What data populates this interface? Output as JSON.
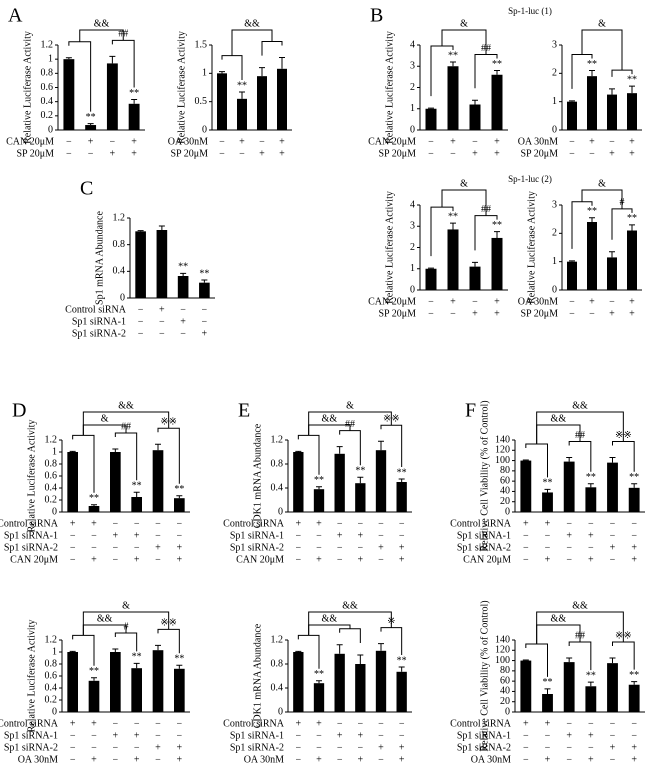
{
  "chart_data": [
    {
      "type": "bar",
      "panel": "A",
      "ylabel": "Relative Luciferase Activity",
      "ylim": [
        0,
        1.2
      ],
      "yticks": [
        0,
        0.2,
        0.4,
        0.6,
        0.8,
        1,
        1.2
      ],
      "values": [
        1.0,
        0.07,
        0.94,
        0.37
      ],
      "errors": [
        0.02,
        0.02,
        0.1,
        0.06
      ],
      "significance": [
        null,
        "**",
        null,
        "**"
      ],
      "annotations": [
        "&&",
        "##"
      ],
      "conditions": [
        {
          "label": "CAN 20μM",
          "signs": [
            "−",
            "+",
            "−",
            "+"
          ]
        },
        {
          "label": "SP 20μM",
          "signs": [
            "−",
            "−",
            "+",
            "+"
          ]
        }
      ]
    },
    {
      "type": "bar",
      "ylabel": "Relative Luciferase Activity",
      "ylim": [
        0,
        1.5
      ],
      "yticks": [
        0,
        0.5,
        1,
        1.5
      ],
      "values": [
        1.0,
        0.55,
        0.95,
        1.08
      ],
      "errors": [
        0.03,
        0.12,
        0.15,
        0.2
      ],
      "significance": [
        null,
        "**",
        null,
        null
      ],
      "annotations": [
        "&&"
      ],
      "conditions": [
        {
          "label": "OA 30nM",
          "signs": [
            "−",
            "+",
            "−",
            "+"
          ]
        },
        {
          "label": "SP 20μM",
          "signs": [
            "−",
            "−",
            "+",
            "+"
          ]
        }
      ]
    },
    {
      "type": "bar",
      "panel": "B",
      "subtitle": "Sp-1-luc (1)",
      "ylabel": "Relative Luciferase Activity",
      "ylim": [
        0,
        4
      ],
      "yticks": [
        0,
        1,
        2,
        3,
        4
      ],
      "values": [
        1.0,
        3.0,
        1.2,
        2.6
      ],
      "errors": [
        0.03,
        0.2,
        0.2,
        0.2
      ],
      "significance": [
        null,
        "**",
        null,
        "**"
      ],
      "annotations": [
        "&",
        "##"
      ],
      "conditions": [
        {
          "label": "CAN 20μM",
          "signs": [
            "−",
            "+",
            "−",
            "+"
          ]
        },
        {
          "label": "SP 20μM",
          "signs": [
            "−",
            "−",
            "+",
            "+"
          ]
        }
      ]
    },
    {
      "type": "bar",
      "ylim": [
        0,
        3
      ],
      "yticks": [
        0,
        1,
        2,
        3
      ],
      "values": [
        1.0,
        1.9,
        1.25,
        1.3
      ],
      "errors": [
        0.03,
        0.2,
        0.2,
        0.25
      ],
      "significance": [
        null,
        "**",
        null,
        "**"
      ],
      "annotations": [
        "&"
      ],
      "conditions": [
        {
          "label": "OA 30nM",
          "signs": [
            "−",
            "+",
            "−",
            "+"
          ]
        },
        {
          "label": "SP 20μM",
          "signs": [
            "−",
            "−",
            "+",
            "+"
          ]
        }
      ]
    },
    {
      "type": "bar",
      "subtitle": "Sp-1-luc (2)",
      "ylabel": "Relative Luciferase Activity",
      "ylim": [
        0,
        4
      ],
      "yticks": [
        0,
        1,
        2,
        3,
        4
      ],
      "values": [
        1.0,
        2.85,
        1.1,
        2.45
      ],
      "errors": [
        0.03,
        0.3,
        0.2,
        0.3
      ],
      "significance": [
        null,
        "**",
        null,
        "**"
      ],
      "annotations": [
        "&",
        "##"
      ],
      "conditions": [
        {
          "label": "CAN 20μM",
          "signs": [
            "−",
            "+",
            "−",
            "+"
          ]
        },
        {
          "label": "SP 20μM",
          "signs": [
            "−",
            "−",
            "+",
            "+"
          ]
        }
      ]
    },
    {
      "type": "bar",
      "ylabel": "Relative Luciferase Activity",
      "ylim": [
        0,
        3
      ],
      "yticks": [
        0,
        1,
        2,
        3
      ],
      "values": [
        1.0,
        2.4,
        1.15,
        2.1
      ],
      "errors": [
        0.03,
        0.15,
        0.2,
        0.2
      ],
      "significance": [
        null,
        "**",
        null,
        "**"
      ],
      "annotations": [
        "&",
        "#"
      ],
      "conditions": [
        {
          "label": "OA 30nM",
          "signs": [
            "−",
            "+",
            "−",
            "+"
          ]
        },
        {
          "label": "SP 20μM",
          "signs": [
            "−",
            "−",
            "+",
            "+"
          ]
        }
      ]
    },
    {
      "type": "bar",
      "panel": "C",
      "ylabel": "Sp1 mRNA Abundance",
      "ylim": [
        0,
        1.2
      ],
      "yticks": [
        0,
        0.4,
        0.8,
        1.2
      ],
      "values": [
        1.0,
        1.02,
        0.33,
        0.23
      ],
      "errors": [
        0.01,
        0.06,
        0.04,
        0.04
      ],
      "significance": [
        null,
        null,
        "**",
        "**"
      ],
      "annotations": [],
      "conditions": [
        {
          "label": "Control siRNA",
          "signs": [
            "−",
            "+",
            "−",
            "−"
          ]
        },
        {
          "label": "Sp1 siRNA-1",
          "signs": [
            "−",
            "−",
            "+",
            "−"
          ]
        },
        {
          "label": "Sp1 siRNA-2",
          "signs": [
            "−",
            "−",
            "−",
            "+"
          ]
        }
      ]
    },
    {
      "type": "bar",
      "panel": "D",
      "ylabel": "Relative Luciferase Activity",
      "ylim": [
        0,
        1.2
      ],
      "yticks": [
        0,
        0.2,
        0.4,
        0.6,
        0.8,
        1,
        1.2
      ],
      "values": [
        1.0,
        0.1,
        1.0,
        0.25,
        1.03,
        0.23
      ],
      "errors": [
        0.01,
        0.02,
        0.05,
        0.08,
        0.1,
        0.04
      ],
      "significance": [
        null,
        "**",
        null,
        "**",
        null,
        "**"
      ],
      "annotations": [
        "&&",
        "&",
        "##",
        "※※"
      ],
      "conditions": [
        {
          "label": "Control siRNA",
          "signs": [
            "+",
            "+",
            "−",
            "−",
            "−",
            "−"
          ]
        },
        {
          "label": "Sp1 siRNA-1",
          "signs": [
            "−",
            "−",
            "+",
            "+",
            "−",
            "−"
          ]
        },
        {
          "label": "Sp1 siRNA-2",
          "signs": [
            "−",
            "−",
            "−",
            "−",
            "+",
            "+"
          ]
        },
        {
          "label": "CAN 20μM",
          "signs": [
            "−",
            "+",
            "−",
            "+",
            "−",
            "+"
          ]
        }
      ]
    },
    {
      "type": "bar",
      "ylabel": "Relative Luciferase Activity",
      "ylim": [
        0,
        1.2
      ],
      "yticks": [
        0,
        0.2,
        0.4,
        0.6,
        0.8,
        1,
        1.2
      ],
      "values": [
        1.0,
        0.52,
        1.0,
        0.73,
        1.03,
        0.72
      ],
      "errors": [
        0.01,
        0.05,
        0.05,
        0.08,
        0.08,
        0.06
      ],
      "significance": [
        null,
        "**",
        null,
        "**",
        null,
        "**"
      ],
      "annotations": [
        "&",
        "&&",
        "#",
        "※※"
      ],
      "conditions": [
        {
          "label": "Control siRNA",
          "signs": [
            "+",
            "+",
            "−",
            "−",
            "−",
            "−"
          ]
        },
        {
          "label": "Sp1 siRNA-1",
          "signs": [
            "−",
            "−",
            "+",
            "+",
            "−",
            "−"
          ]
        },
        {
          "label": "Sp1 siRNA-2",
          "signs": [
            "−",
            "−",
            "−",
            "−",
            "+",
            "+"
          ]
        },
        {
          "label": "OA 30nM",
          "signs": [
            "−",
            "+",
            "−",
            "+",
            "−",
            "+"
          ]
        }
      ]
    },
    {
      "type": "bar",
      "panel": "E",
      "ylabel": "CDK1 mRNA Abundance",
      "ylim": [
        0,
        1.2
      ],
      "yticks": [
        0,
        0.4,
        0.8,
        1.2
      ],
      "values": [
        1.0,
        0.38,
        0.97,
        0.48,
        1.03,
        0.5
      ],
      "errors": [
        0.01,
        0.04,
        0.12,
        0.1,
        0.15,
        0.05
      ],
      "significance": [
        null,
        "**",
        null,
        "**",
        null,
        "**"
      ],
      "annotations": [
        "&",
        "&&",
        "##",
        "※※"
      ],
      "conditions": [
        {
          "label": "Control siRNA",
          "signs": [
            "+",
            "+",
            "−",
            "−",
            "−",
            "−"
          ]
        },
        {
          "label": "Sp1 siRNA-1",
          "signs": [
            "−",
            "−",
            "+",
            "+",
            "−",
            "−"
          ]
        },
        {
          "label": "Sp1 siRNA-2",
          "signs": [
            "−",
            "−",
            "−",
            "−",
            "+",
            "+"
          ]
        },
        {
          "label": "CAN 20μM",
          "signs": [
            "−",
            "+",
            "−",
            "+",
            "−",
            "+"
          ]
        }
      ]
    },
    {
      "type": "bar",
      "ylabel": "CDK1 mRNA Abundance",
      "ylim": [
        0,
        1.2
      ],
      "yticks": [
        0,
        0.4,
        0.8,
        1.2
      ],
      "values": [
        1.0,
        0.48,
        0.97,
        0.8,
        1.02,
        0.67
      ],
      "errors": [
        0.01,
        0.04,
        0.15,
        0.15,
        0.12,
        0.08
      ],
      "significance": [
        null,
        "**",
        null,
        null,
        null,
        "**"
      ],
      "annotations": [
        "&&",
        "&&",
        "※"
      ],
      "conditions": [
        {
          "label": "Control siRNA",
          "signs": [
            "+",
            "+",
            "−",
            "−",
            "−",
            "−"
          ]
        },
        {
          "label": "Sp1 siRNA-1",
          "signs": [
            "−",
            "−",
            "+",
            "+",
            "−",
            "−"
          ]
        },
        {
          "label": "Sp1 siRNA-2",
          "signs": [
            "−",
            "−",
            "−",
            "−",
            "+",
            "+"
          ]
        },
        {
          "label": "OA 30nM",
          "signs": [
            "−",
            "+",
            "−",
            "+",
            "−",
            "+"
          ]
        }
      ]
    },
    {
      "type": "bar",
      "panel": "F",
      "ylabel": "Relative Cell Viability (% of Control)",
      "ylim": [
        0,
        140
      ],
      "yticks": [
        0,
        20,
        40,
        60,
        80,
        100,
        120,
        140
      ],
      "values": [
        100,
        38,
        98,
        48,
        96,
        47
      ],
      "errors": [
        1,
        6,
        8,
        7,
        10,
        8
      ],
      "significance": [
        null,
        "**",
        null,
        "**",
        null,
        "**"
      ],
      "annotations": [
        "&&",
        "&&",
        "##",
        "※※"
      ],
      "conditions": [
        {
          "label": "Control siRNA",
          "signs": [
            "+",
            "+",
            "−",
            "−",
            "−",
            "−"
          ]
        },
        {
          "label": "Sp1 siRNA-1",
          "signs": [
            "−",
            "−",
            "+",
            "+",
            "−",
            "−"
          ]
        },
        {
          "label": "Sp1 siRNA-2",
          "signs": [
            "−",
            "−",
            "−",
            "−",
            "+",
            "+"
          ]
        },
        {
          "label": "CAN 20μM",
          "signs": [
            "−",
            "+",
            "−",
            "+",
            "−",
            "+"
          ]
        }
      ]
    },
    {
      "type": "bar",
      "ylabel": "Relative Cell Viability (% of Control)",
      "ylim": [
        0,
        140
      ],
      "yticks": [
        0,
        20,
        40,
        60,
        80,
        100,
        120,
        140
      ],
      "values": [
        100,
        35,
        97,
        50,
        95,
        53
      ],
      "errors": [
        1,
        10,
        8,
        8,
        10,
        6
      ],
      "significance": [
        null,
        "**",
        null,
        "**",
        null,
        "**"
      ],
      "annotations": [
        "&&",
        "&&",
        "##",
        "※※"
      ],
      "conditions": [
        {
          "label": "Control siRNA",
          "signs": [
            "+",
            "+",
            "−",
            "−",
            "−",
            "−"
          ]
        },
        {
          "label": "Sp1 siRNA-1",
          "signs": [
            "−",
            "−",
            "+",
            "+",
            "−",
            "−"
          ]
        },
        {
          "label": "Sp1 siRNA-2",
          "signs": [
            "−",
            "−",
            "−",
            "−",
            "+",
            "+"
          ]
        },
        {
          "label": "OA 30nM",
          "signs": [
            "−",
            "+",
            "−",
            "+",
            "−",
            "+"
          ]
        }
      ]
    }
  ]
}
